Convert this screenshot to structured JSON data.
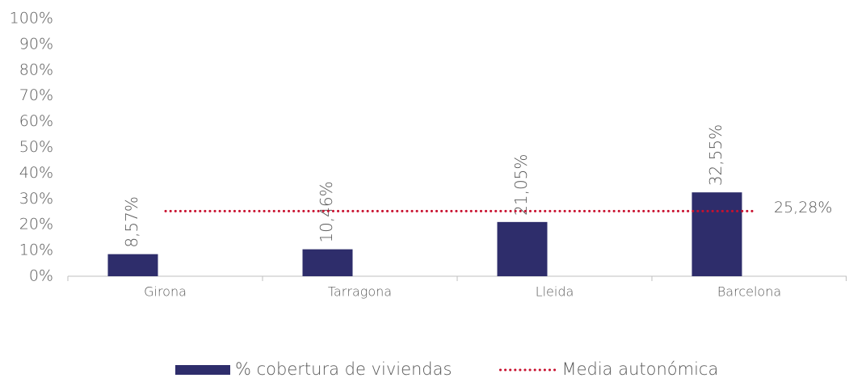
{
  "chart_data": {
    "type": "bar",
    "categories": [
      "Girona",
      "Tarragona",
      "Lleida",
      "Barcelona"
    ],
    "series": [
      {
        "name": "% cobertura de viviendas",
        "color": "#2e2d6b",
        "values": [
          8.57,
          10.46,
          21.05,
          32.55
        ],
        "value_labels": [
          "8,57%",
          "10,46%",
          "21,05%",
          "32,55%"
        ]
      }
    ],
    "reference_line": {
      "name": "Media autonómica",
      "color": "#c8102e",
      "value": 25.28,
      "value_label": "25,28%"
    },
    "ylim": [
      0,
      100
    ],
    "yticks": [
      {
        "value": 0,
        "label": "0%"
      },
      {
        "value": 10,
        "label": "10%"
      },
      {
        "value": 20,
        "label": "20%"
      },
      {
        "value": 30,
        "label": "30%"
      },
      {
        "value": 40,
        "label": "40%"
      },
      {
        "value": 50,
        "label": "50%"
      },
      {
        "value": 60,
        "label": "60%"
      },
      {
        "value": 70,
        "label": "70%"
      },
      {
        "value": 80,
        "label": "80%"
      },
      {
        "value": 90,
        "label": "90%"
      },
      {
        "value": 100,
        "label": "100%"
      }
    ],
    "legend": "bottom"
  }
}
